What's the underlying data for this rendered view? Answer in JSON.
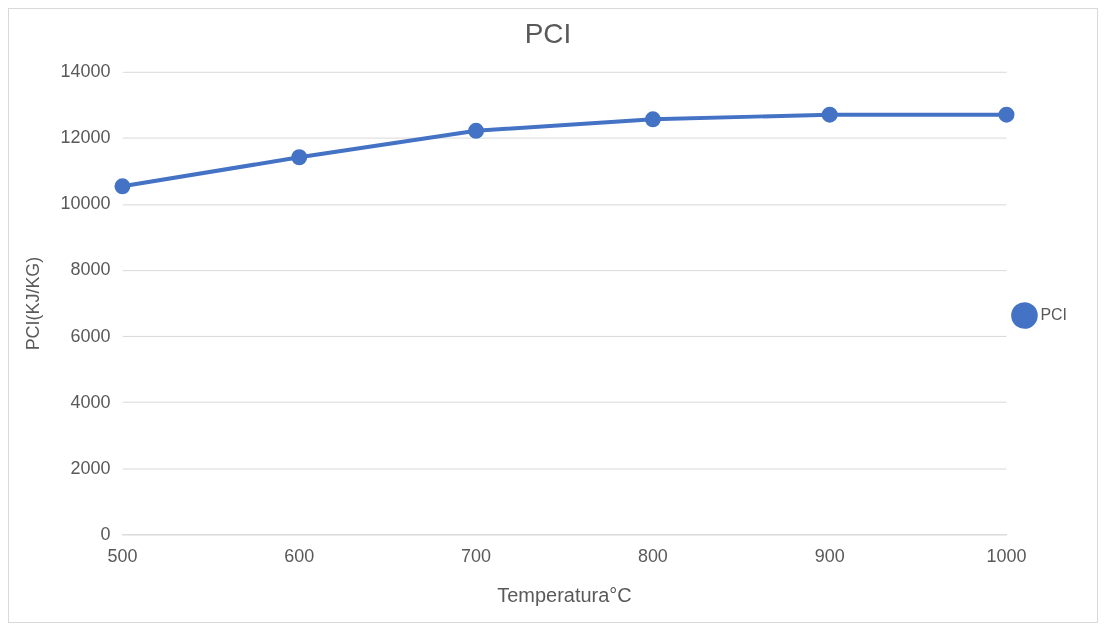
{
  "chart_data": {
    "type": "line",
    "title": "PCI",
    "xlabel": "Temperatura°C",
    "ylabel": "PCI(KJ/KG)",
    "categories": [
      "500",
      "600",
      "700",
      "800",
      "900",
      "1000"
    ],
    "series": [
      {
        "name": "PCI",
        "color": "#4472c4",
        "values": [
          10550,
          11430,
          12230,
          12580,
          12720,
          12720
        ]
      }
    ],
    "ylim": [
      0,
      14000
    ],
    "yticks": [
      0,
      2000,
      4000,
      6000,
      8000,
      10000,
      12000,
      14000
    ],
    "grid": "y",
    "legend": "right",
    "marker": "circle",
    "line_style": "solid"
  }
}
